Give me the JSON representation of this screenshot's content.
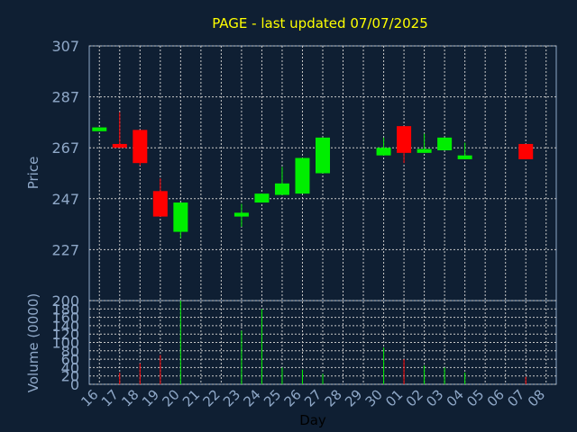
{
  "chart_data": {
    "type": "candlestick",
    "title": "PAGE - last updated 07/07/2025",
    "ylabel_price": "Price",
    "ylabel_volume": "Volume (0000)",
    "xlabel": "Day",
    "price_ylim": [
      207,
      307
    ],
    "price_ticks": [
      "307",
      "287",
      "267",
      "247",
      "227"
    ],
    "volume_ylim": [
      0,
      200
    ],
    "volume_ticks": [
      "200",
      "180",
      "160",
      "140",
      "120",
      "100",
      "80",
      "60",
      "40",
      "20",
      "0"
    ],
    "x_labels": [
      "16",
      "17",
      "18",
      "19",
      "20",
      "21",
      "22",
      "23",
      "24",
      "25",
      "26",
      "27",
      "28",
      "29",
      "30",
      "01",
      "02",
      "03",
      "04",
      "05",
      "06",
      "07",
      "08"
    ],
    "grid": true,
    "colors": {
      "background": "#0f1f33",
      "up": "#00ee00",
      "down": "#ff0000",
      "grid": "#c8c8c8",
      "title": "#ffff00",
      "label": "#8fa8c8"
    },
    "candles": [
      {
        "day": "16",
        "open": 273.5,
        "close": 275.0,
        "high": 275.0,
        "low": 273.5,
        "volume": 0
      },
      {
        "day": "17",
        "open": 268.5,
        "close": 267.0,
        "high": 281.0,
        "low": 267.0,
        "volume": 28
      },
      {
        "day": "18",
        "open": 274.0,
        "close": 261.0,
        "high": 274.0,
        "low": 260.0,
        "volume": 50
      },
      {
        "day": "19",
        "open": 250.0,
        "close": 240.0,
        "high": 255.0,
        "low": 240.0,
        "volume": 70
      },
      {
        "day": "20",
        "open": 234.0,
        "close": 245.5,
        "high": 245.5,
        "low": 231.5,
        "volume": 200
      },
      {
        "day": "23",
        "open": 240.0,
        "close": 241.5,
        "high": 245.0,
        "low": 236.0,
        "volume": 128
      },
      {
        "day": "24",
        "open": 245.5,
        "close": 249.0,
        "high": 249.0,
        "low": 245.5,
        "volume": 180
      },
      {
        "day": "25",
        "open": 248.5,
        "close": 253.0,
        "high": 259.5,
        "low": 248.5,
        "volume": 40
      },
      {
        "day": "26",
        "open": 249.0,
        "close": 263.0,
        "high": 263.0,
        "low": 249.0,
        "volume": 35
      },
      {
        "day": "27",
        "open": 257.0,
        "close": 271.0,
        "high": 271.0,
        "low": 257.0,
        "volume": 25
      },
      {
        "day": "30",
        "open": 264.0,
        "close": 267.0,
        "high": 271.0,
        "low": 264.0,
        "volume": 88
      },
      {
        "day": "01",
        "open": 275.5,
        "close": 265.0,
        "high": 275.5,
        "low": 261.0,
        "volume": 60
      },
      {
        "day": "02",
        "open": 265.0,
        "close": 266.5,
        "high": 272.5,
        "low": 265.0,
        "volume": 45
      },
      {
        "day": "03",
        "open": 266.0,
        "close": 271.0,
        "high": 271.0,
        "low": 266.0,
        "volume": 40
      },
      {
        "day": "04",
        "open": 262.5,
        "close": 264.0,
        "high": 269.0,
        "low": 262.5,
        "volume": 28
      },
      {
        "day": "07",
        "open": 268.5,
        "close": 262.5,
        "high": 268.5,
        "low": 262.5,
        "volume": 18
      }
    ]
  }
}
